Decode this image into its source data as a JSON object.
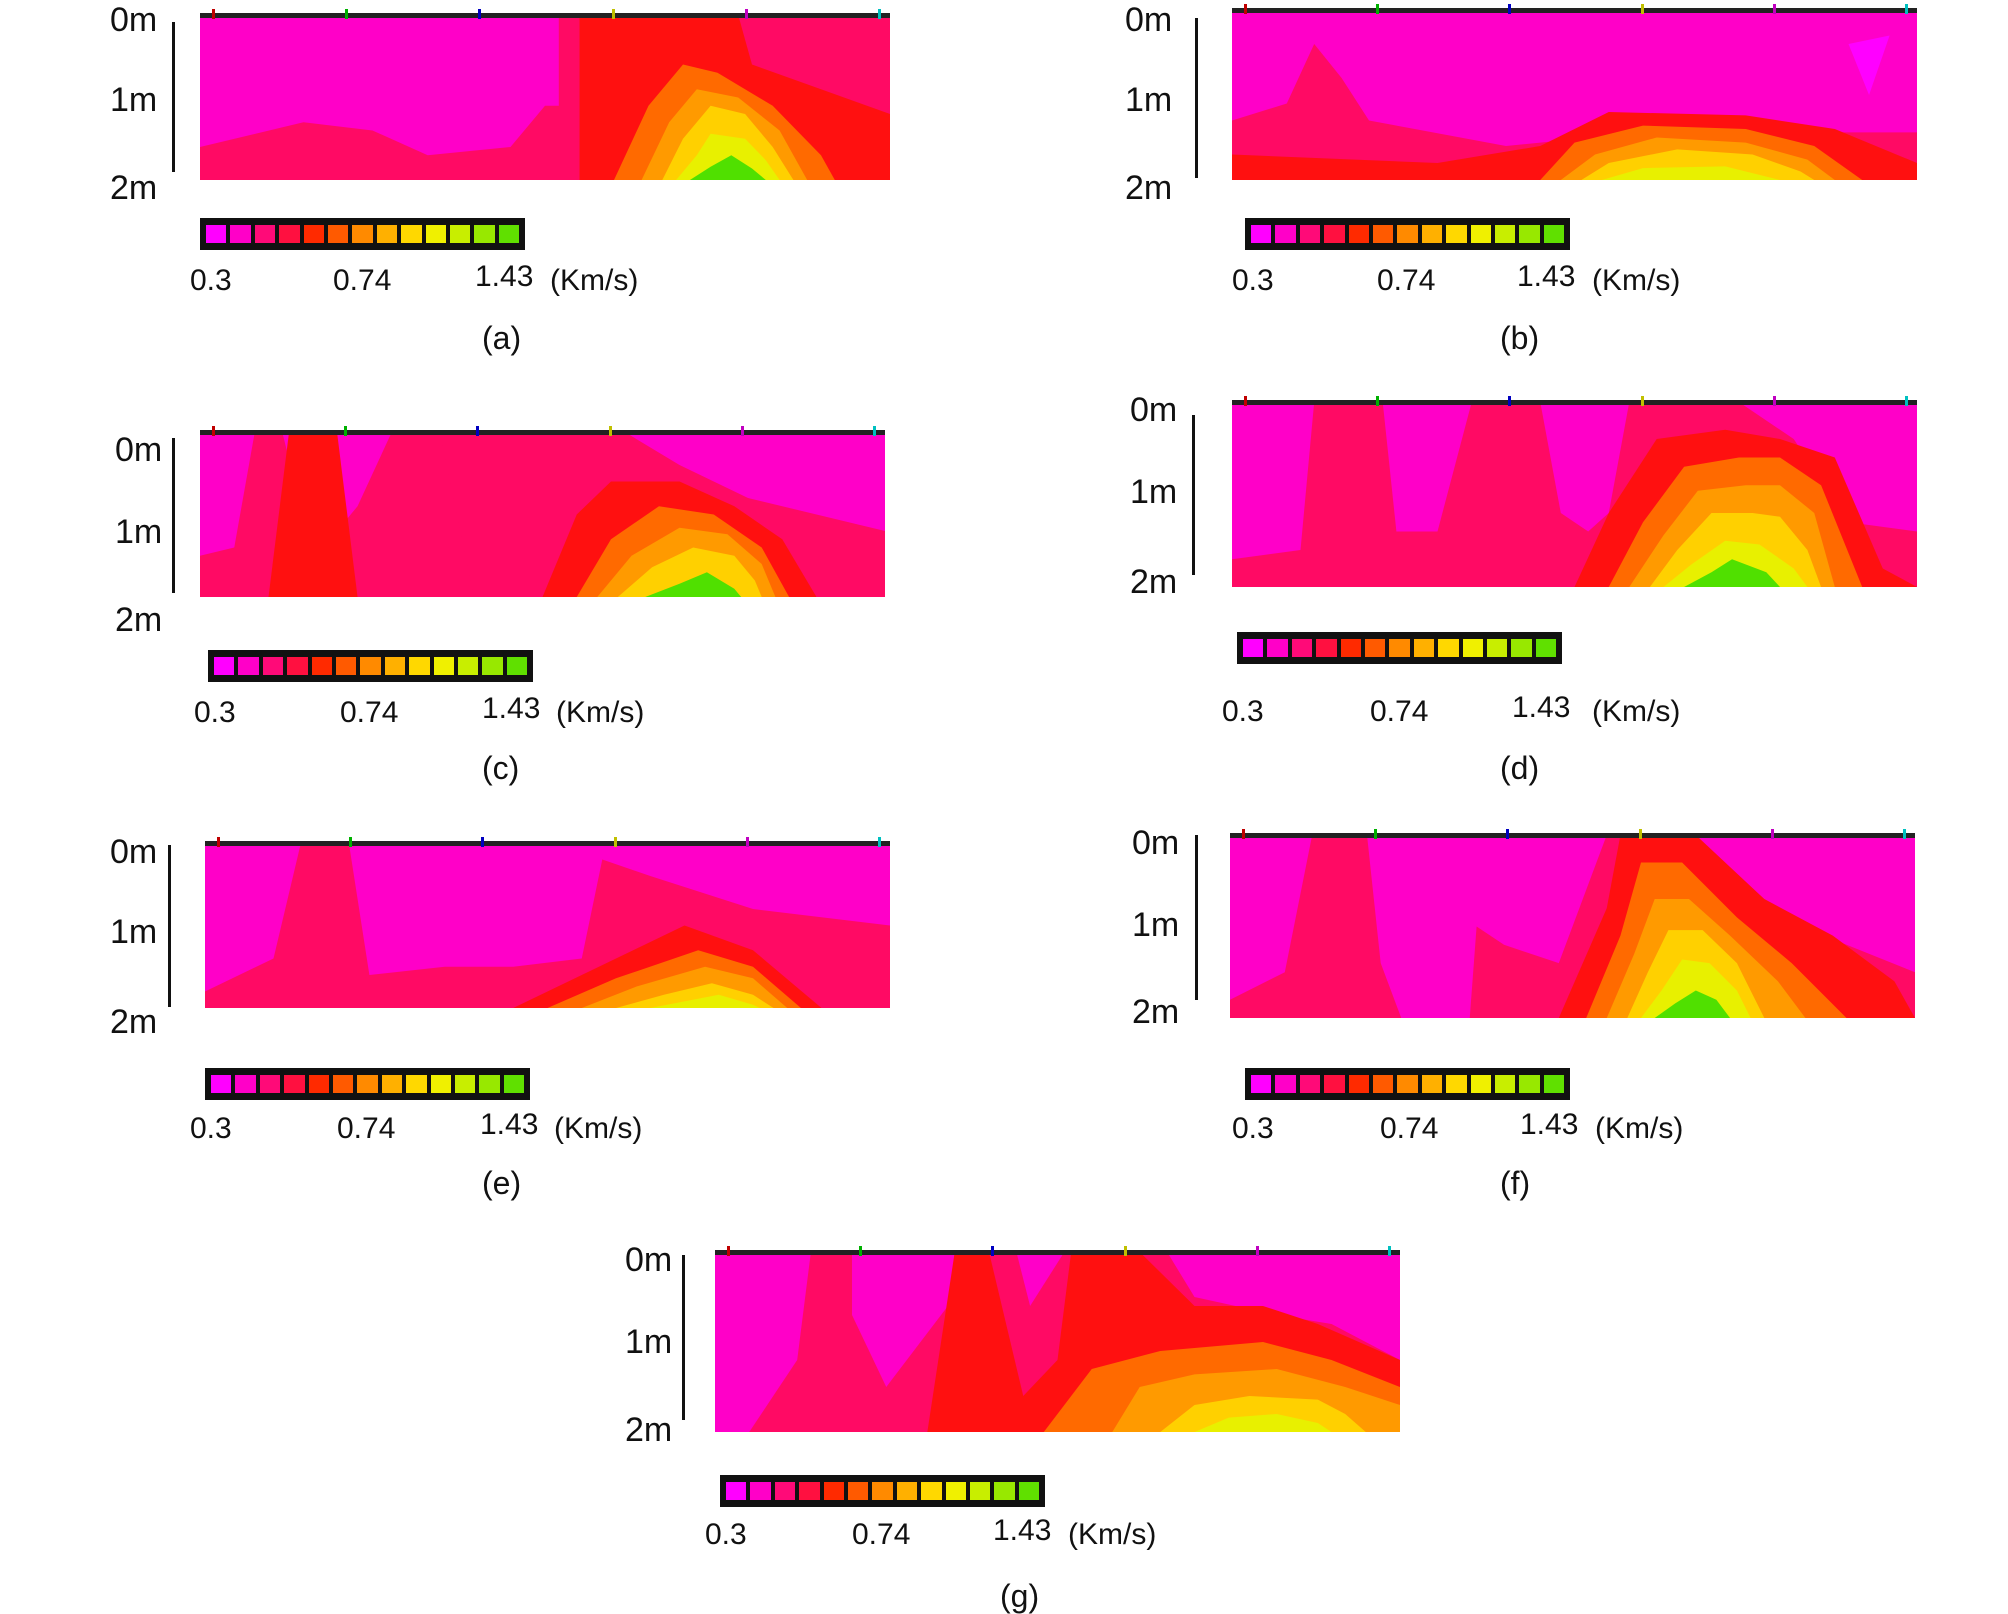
{
  "depth_labels": [
    "0m",
    "1m",
    "2m"
  ],
  "colorbar": {
    "min_label": "0.3",
    "mid_label": "0.74",
    "max_label": "1.43",
    "unit": "(Km/s)",
    "colors": [
      "#ff00ff",
      "#ff00c8",
      "#ff0a78",
      "#ff1040",
      "#ff2a00",
      "#ff5a00",
      "#ff8a00",
      "#ffb000",
      "#ffd800",
      "#f0f000",
      "#c8ee00",
      "#98e800",
      "#60e000"
    ]
  },
  "panels": [
    {
      "caption": "(a)",
      "icon": "velocity-tomogram"
    },
    {
      "caption": "(b)",
      "icon": "velocity-tomogram"
    },
    {
      "caption": "(c)",
      "icon": "velocity-tomogram"
    },
    {
      "caption": "(d)",
      "icon": "velocity-tomogram"
    },
    {
      "caption": "(e)",
      "icon": "velocity-tomogram"
    },
    {
      "caption": "(f)",
      "icon": "velocity-tomogram"
    },
    {
      "caption": "(g)",
      "icon": "velocity-tomogram"
    }
  ],
  "colors": {
    "magenta": "#ff00ff",
    "pink": "#ff00c8",
    "rose": "#ff0a64",
    "red": "#ff1010",
    "orange": "#ff7a00",
    "yellow": "#ffe000",
    "green": "#50e000"
  }
}
